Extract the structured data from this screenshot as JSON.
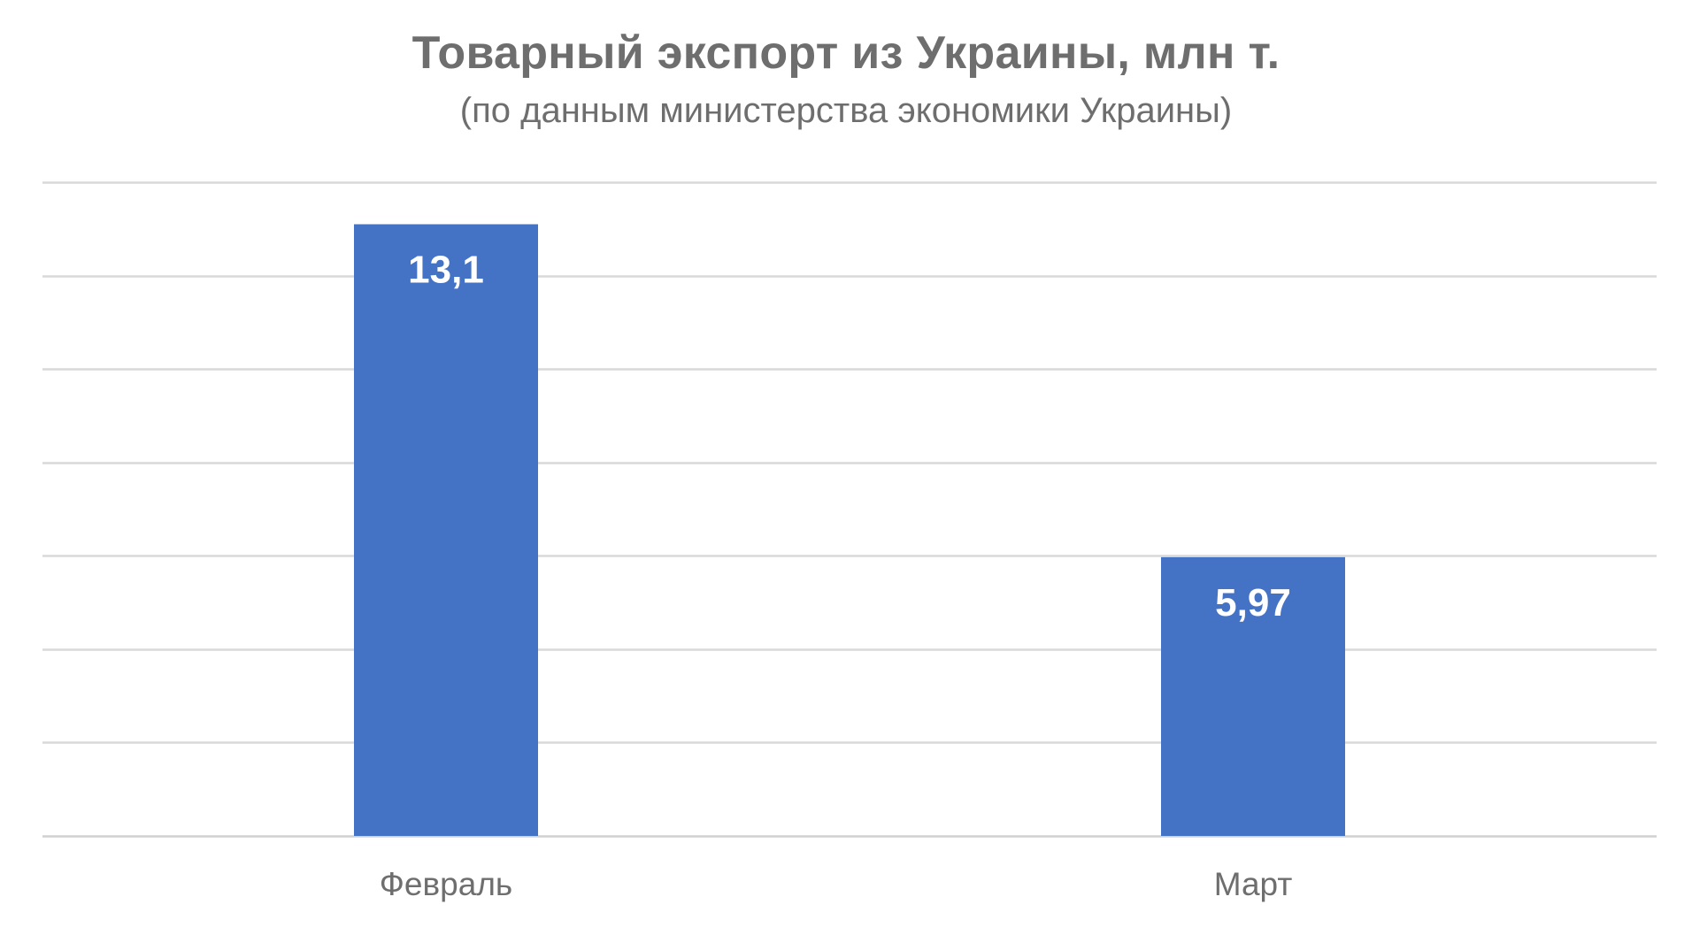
{
  "chart_data": {
    "type": "bar",
    "title": "Товарный экспорт из Украины, млн т.",
    "subtitle": "(по данным министерства экономики Украины)",
    "categories": [
      "Февраль",
      "Март"
    ],
    "values": [
      13.1,
      5.97
    ],
    "value_labels": [
      "13,1",
      "5,97"
    ],
    "xlabel": "",
    "ylabel": "",
    "ylim": [
      0,
      14
    ],
    "gridlines": [
      0,
      2,
      4,
      6,
      8,
      10,
      12,
      14
    ],
    "grid": true,
    "legend": "none",
    "bar_color": "#4472C4",
    "grid_color": "#d9d9d9",
    "text_color": "#6e6e6e"
  }
}
